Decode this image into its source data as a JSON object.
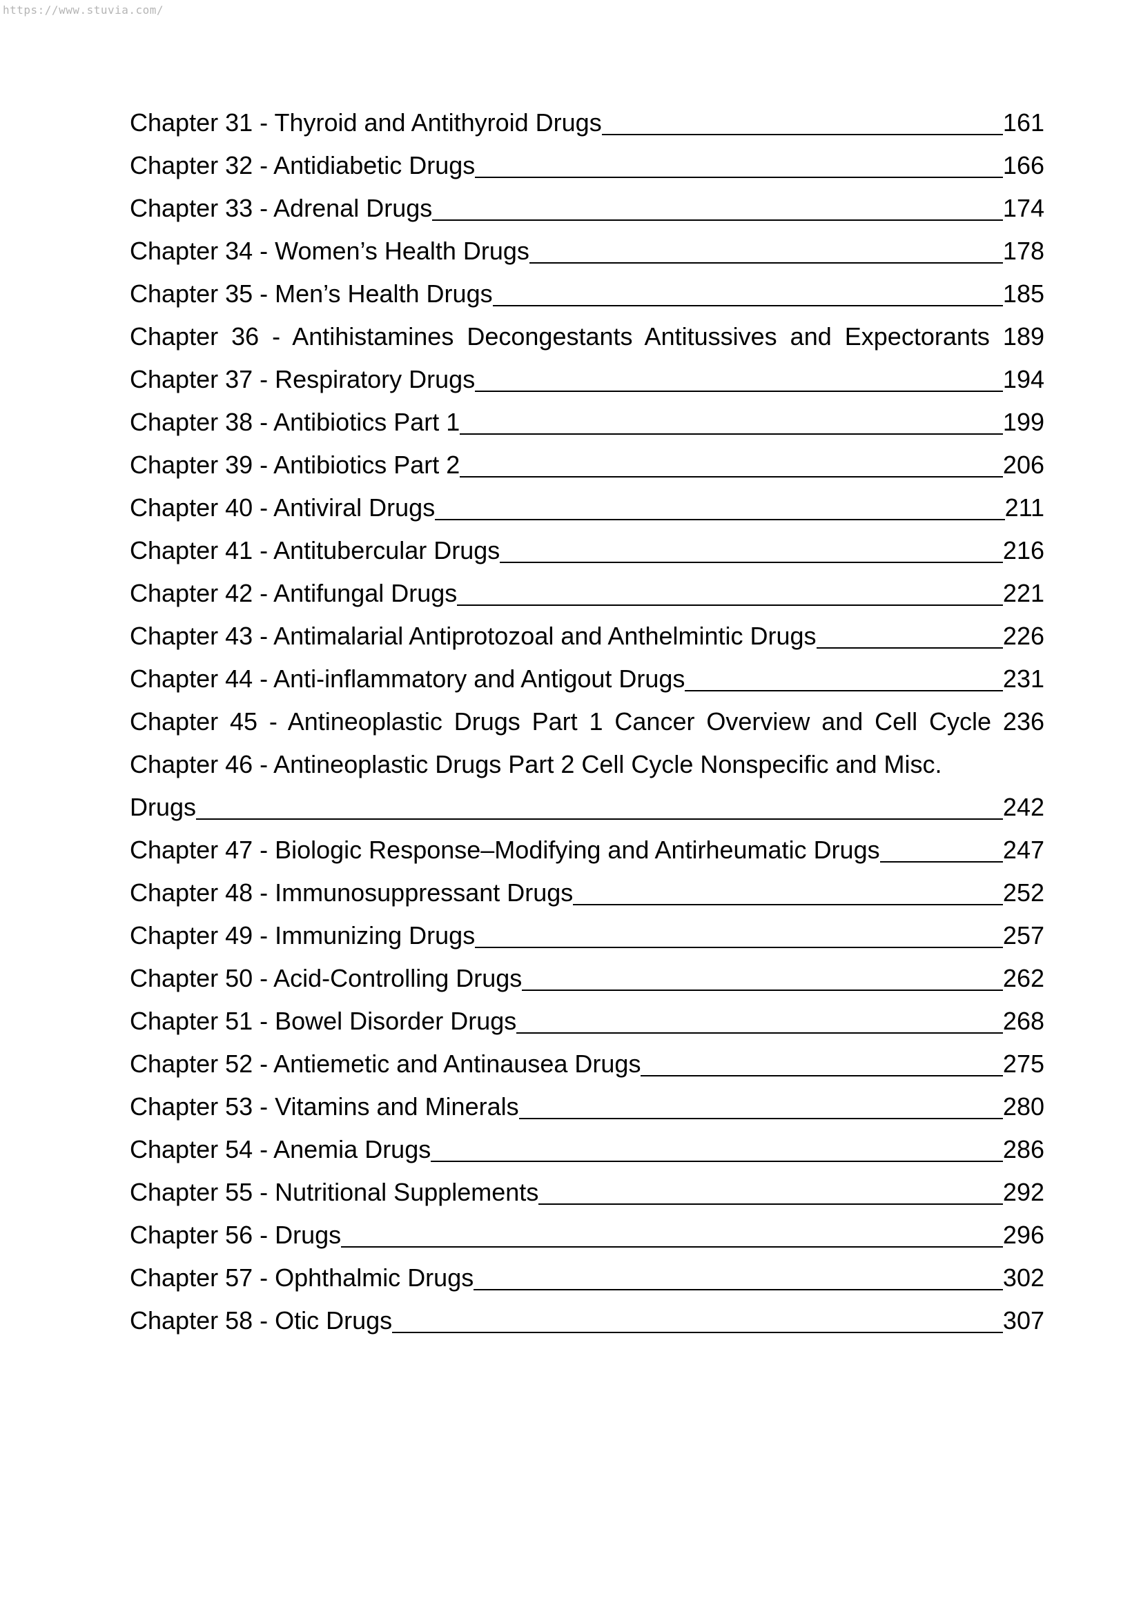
{
  "watermark": {
    "url": "https://www.stuvia.com/"
  },
  "toc": {
    "entries": [
      {
        "style": "leader",
        "label": "Chapter 31 - Thyroid and Antithyroid Drugs",
        "page": "161"
      },
      {
        "style": "leader",
        "label": "Chapter 32 - Antidiabetic Drugs",
        "page": "166"
      },
      {
        "style": "leader",
        "label": "Chapter 33 - Adrenal Drugs",
        "page": "174"
      },
      {
        "style": "leader",
        "label": "Chapter 34 - Women’s Health Drugs",
        "page": "178"
      },
      {
        "style": "leader",
        "label": "Chapter 35 - Men’s Health Drugs",
        "page": "185"
      },
      {
        "style": "justify",
        "label": "Chapter 36 - Antihistamines Decongestants Antitussives and Expectorants",
        "page": "189"
      },
      {
        "style": "leader",
        "label": "Chapter 37 - Respiratory Drugs",
        "page": "194"
      },
      {
        "style": "leader",
        "label": "Chapter 38 - Antibiotics Part 1",
        "page": "199"
      },
      {
        "style": "leader",
        "label": "Chapter 39 - Antibiotics Part 2",
        "page": "206"
      },
      {
        "style": "leader",
        "label": "Chapter 40 - Antiviral Drugs",
        "page": "211"
      },
      {
        "style": "leader",
        "label": "Chapter 41 - Antitubercular Drugs",
        "page": "216"
      },
      {
        "style": "leader",
        "label": "Chapter 42 - Antifungal Drugs",
        "page": "221"
      },
      {
        "style": "leader",
        "label": "Chapter 43 - Antimalarial Antiprotozoal and Anthelmintic Drugs",
        "page": "226"
      },
      {
        "style": "leader",
        "label": "Chapter 44 - Anti-inflammatory and Antigout Drugs",
        "page": "231"
      },
      {
        "style": "justify",
        "label": "Chapter 45 - Antineoplastic Drugs Part 1 Cancer Overview and Cell Cycle",
        "page": "236"
      },
      {
        "style": "wrap",
        "label": "Chapter 46 - Antineoplastic Drugs Part 2 Cell Cycle Nonspecific and Misc.",
        "label2": "Drugs",
        "page": "242"
      },
      {
        "style": "leader",
        "label": "Chapter 47 - Biologic Response–Modifying and Antirheumatic Drugs",
        "page": "247"
      },
      {
        "style": "leader",
        "label": "Chapter 48 - Immunosuppressant Drugs",
        "page": "252"
      },
      {
        "style": "leader",
        "label": "Chapter 49 - Immunizing Drugs",
        "page": "257"
      },
      {
        "style": "leader",
        "label": "Chapter 50 - Acid-Controlling Drugs",
        "page": "262"
      },
      {
        "style": "leader",
        "label": "Chapter 51 - Bowel Disorder Drugs",
        "page": "268"
      },
      {
        "style": "leader",
        "label": "Chapter 52 - Antiemetic and Antinausea Drugs",
        "page": "275"
      },
      {
        "style": "leader",
        "label": "Chapter 53 - Vitamins and Minerals",
        "page": "280"
      },
      {
        "style": "leader",
        "label": "Chapter 54 - Anemia Drugs",
        "page": "286"
      },
      {
        "style": "leader",
        "label": "Chapter 55 - Nutritional Supplements",
        "page": "292"
      },
      {
        "style": "leader",
        "label": "Chapter 56 - Drugs",
        "page": "296"
      },
      {
        "style": "leader",
        "label": "Chapter 57 - Ophthalmic Drugs",
        "page": "302"
      },
      {
        "style": "leader",
        "label": "Chapter 58 - Otic Drugs",
        "page": "307"
      }
    ]
  }
}
